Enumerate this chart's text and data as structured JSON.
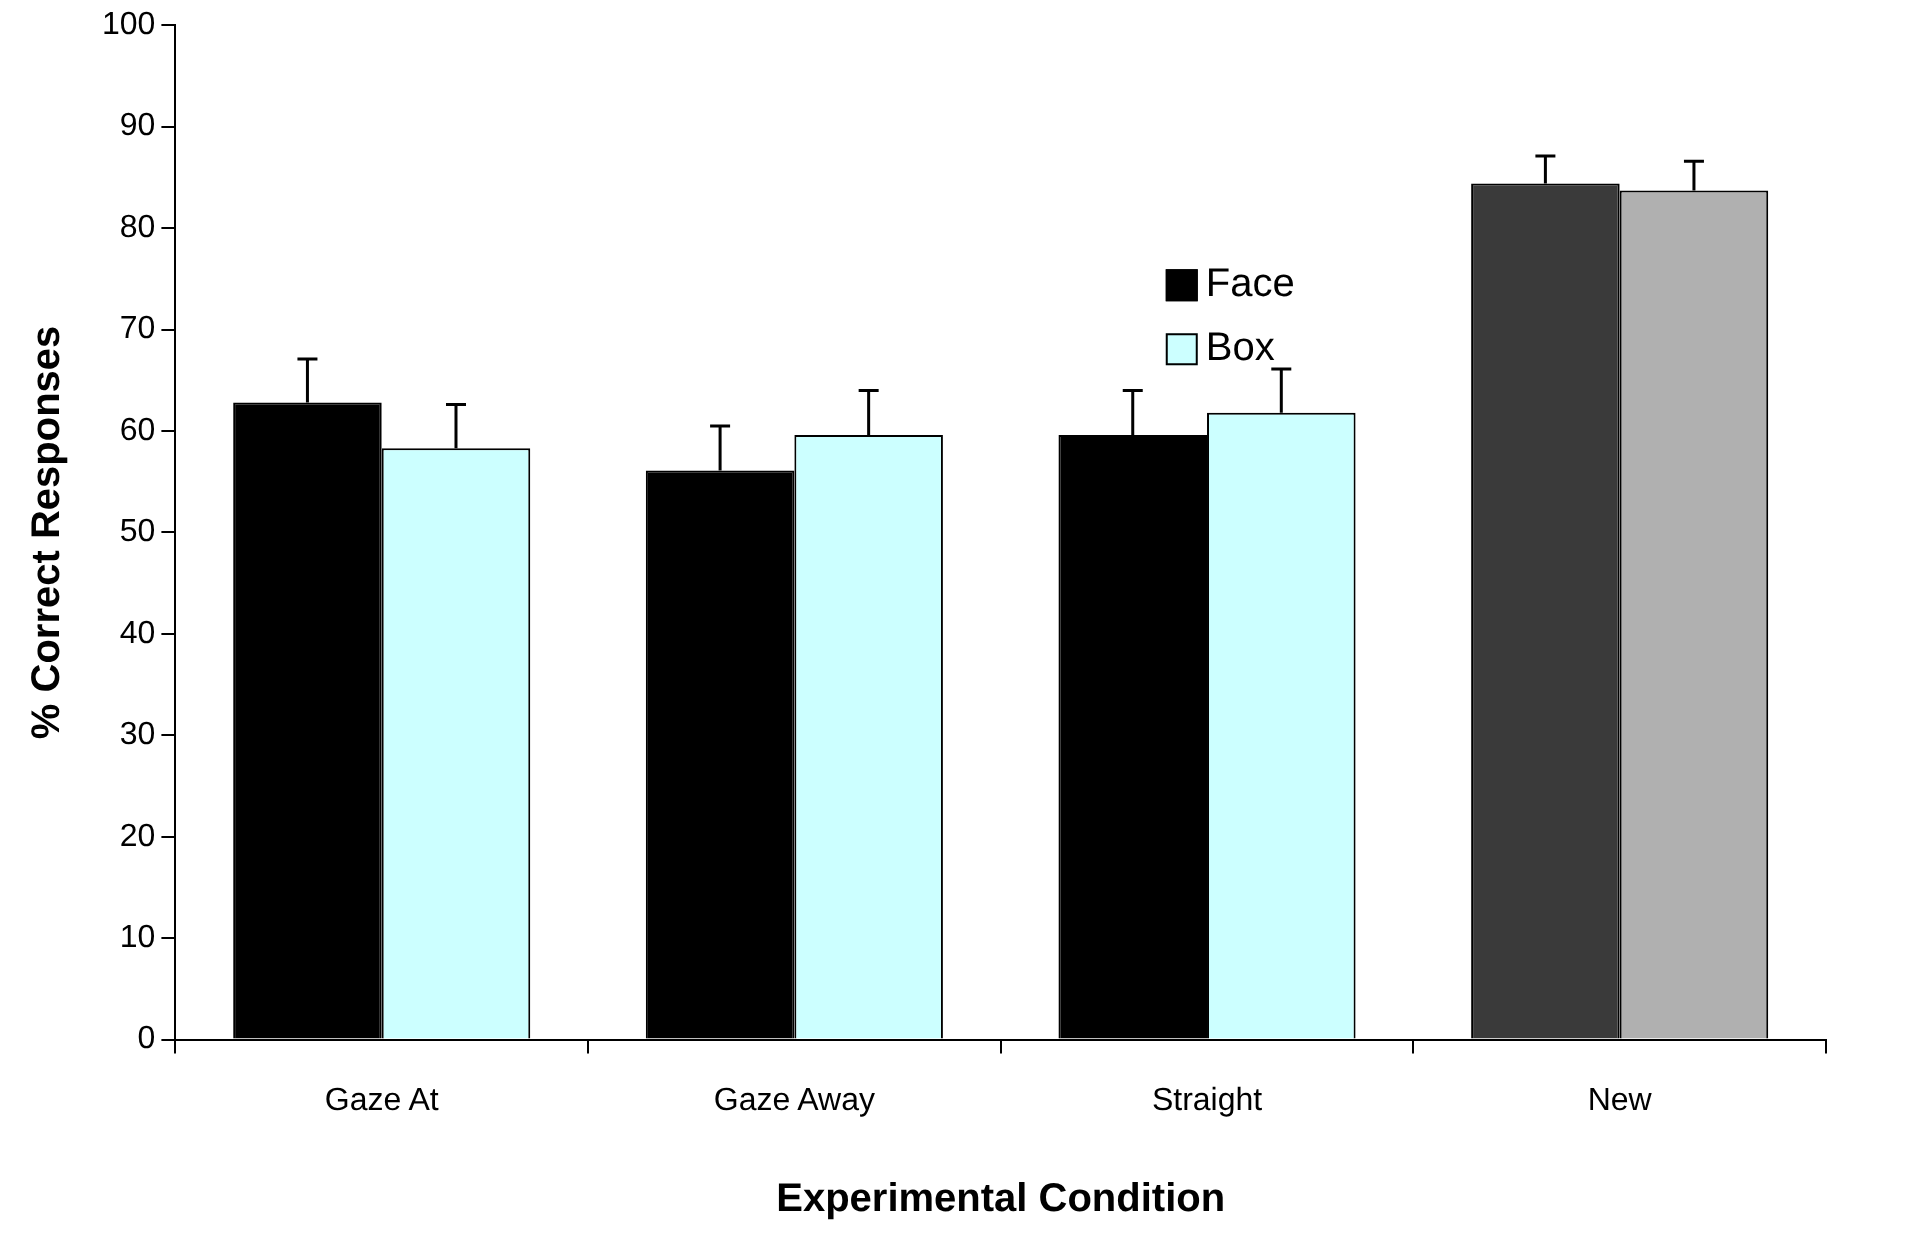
{
  "chart_data": {
    "type": "bar",
    "xlabel": "Experimental Condition",
    "ylabel": "% Correct Responses",
    "categories": [
      "Gaze At",
      "Gaze Away",
      "Straight",
      "New"
    ],
    "series": [
      {
        "name": "Face",
        "color": "#000000",
        "colors": [
          "#000000",
          "#000000",
          "#000000",
          "#3a3a3a"
        ],
        "values": [
          62.8,
          56.1,
          59.6,
          84.4
        ],
        "errors": [
          [
            62.8,
            67.1
          ],
          [
            56.1,
            60.5
          ],
          [
            59.6,
            64.0
          ],
          [
            84.4,
            87.1
          ]
        ]
      },
      {
        "name": "Box",
        "color": "#ccffff",
        "colors": [
          "#ccffff",
          "#ccffff",
          "#ccffff",
          "#b0b0b0"
        ],
        "values": [
          58.3,
          59.6,
          61.8,
          83.7
        ],
        "errors": [
          [
            58.3,
            62.6
          ],
          [
            59.6,
            64.0
          ],
          [
            61.8,
            66.1
          ],
          [
            83.7,
            86.6
          ]
        ]
      }
    ],
    "ylim": [
      0,
      100
    ],
    "yticks": [
      0,
      10,
      20,
      30,
      40,
      50,
      60,
      70,
      80,
      90,
      100
    ],
    "grid": false,
    "legend": "top"
  }
}
